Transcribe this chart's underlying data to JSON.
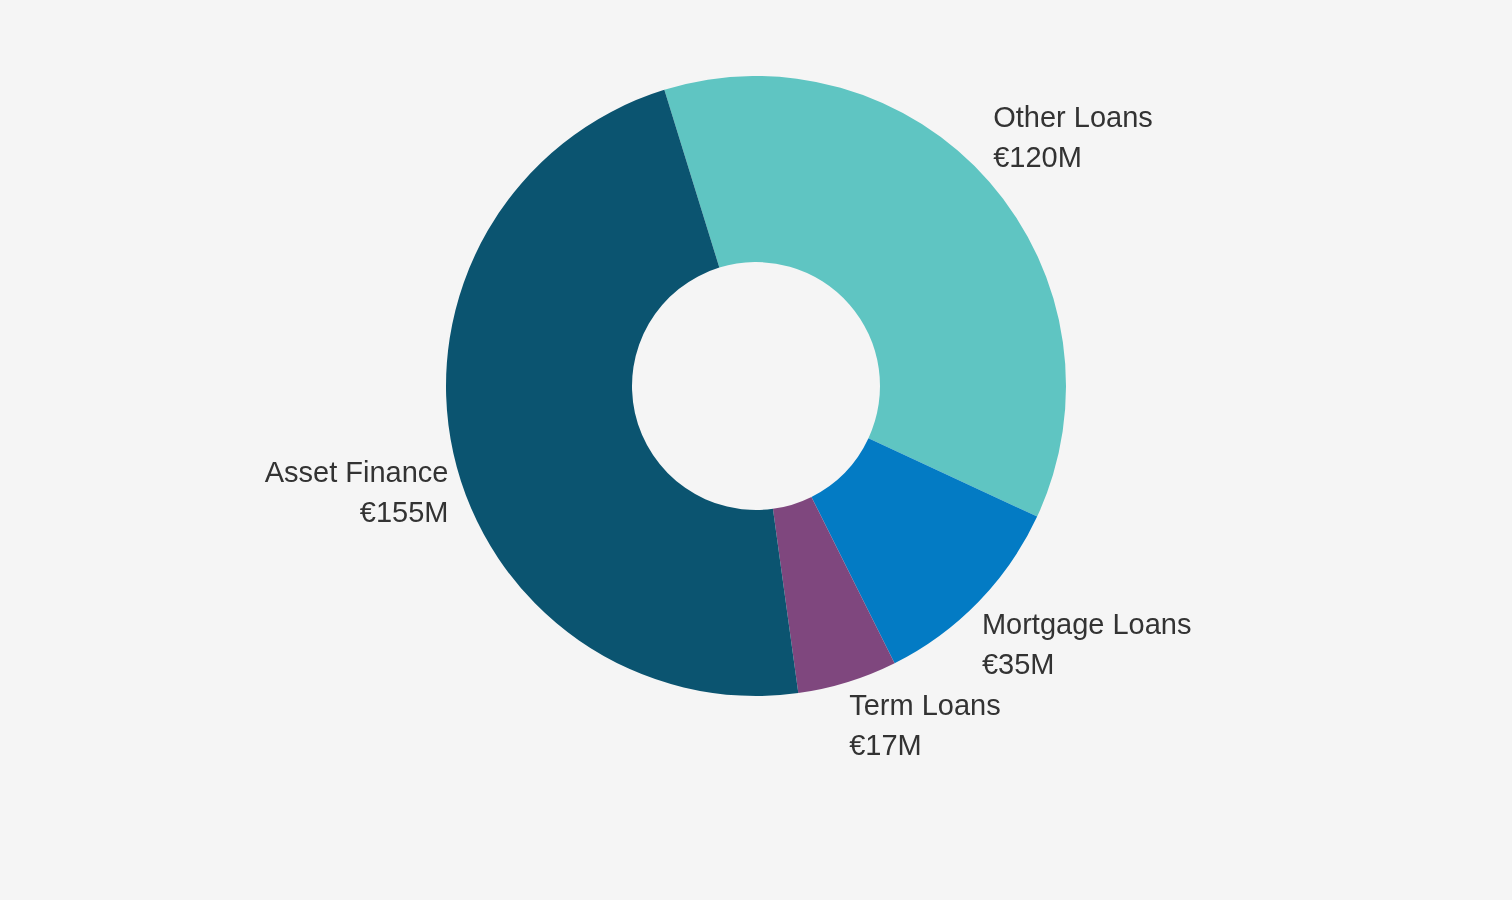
{
  "chart_data": {
    "type": "donut",
    "categories": [
      "Other Loans",
      "Mortgage Loans",
      "Term Loans",
      "Asset Finance"
    ],
    "values": [
      120,
      35,
      17,
      155
    ],
    "value_labels": [
      "€120M",
      "€35M",
      "€17M",
      "€155M"
    ],
    "colors": [
      "#5fc5c2",
      "#037bc4",
      "#7f477e",
      "#0b5470"
    ]
  }
}
